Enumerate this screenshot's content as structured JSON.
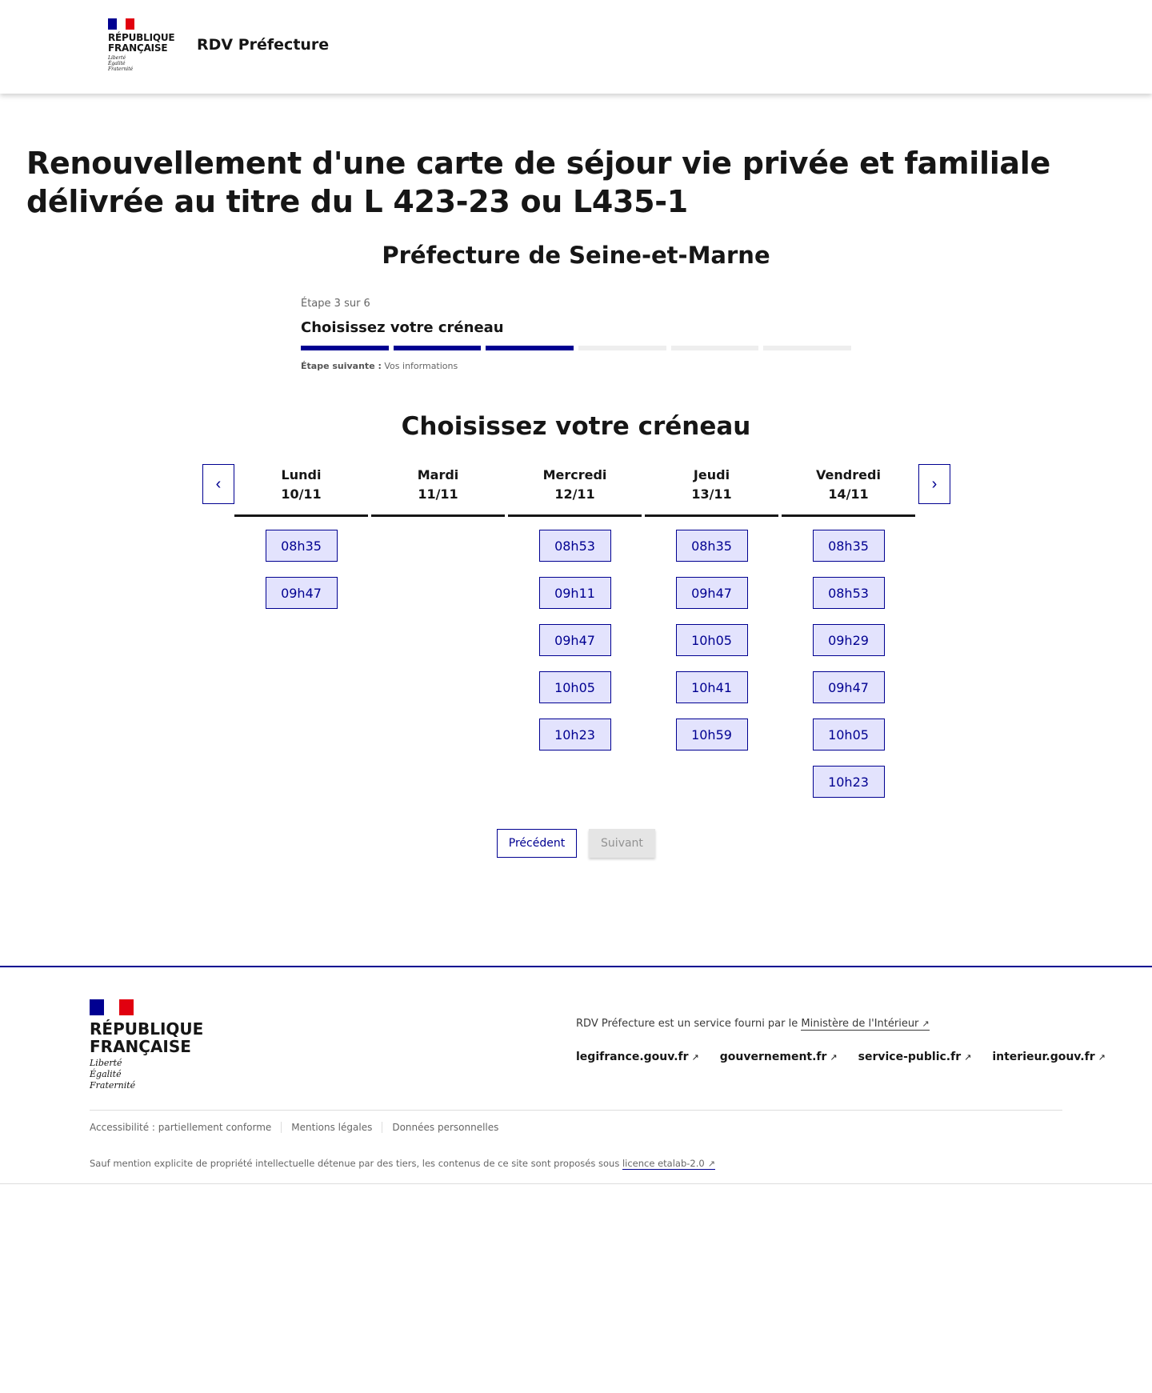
{
  "header": {
    "logo_line1": "RÉPUBLIQUE",
    "logo_line2": "FRANÇAISE",
    "motto": [
      "Liberté",
      "Égalité",
      "Fraternité"
    ],
    "site_title": "RDV Préfecture"
  },
  "page": {
    "title": "Renouvellement d'une carte de séjour vie privée et familiale délivrée au titre du L 423-23 ou L435-1",
    "subtitle": "Préfecture de Seine-et-Marne"
  },
  "stepper": {
    "step_label": "Étape 3 sur 6",
    "current_title": "Choisissez votre créneau",
    "current_step": 3,
    "total_steps": 6,
    "next_label": "Étape suivante :",
    "next_value": "Vos informations",
    "active_color": "#000091"
  },
  "calendar": {
    "heading": "Choisissez votre créneau",
    "prev_icon": "chevron-left-icon",
    "next_icon": "chevron-right-icon",
    "days": [
      {
        "day": "Lundi",
        "date": "10/11",
        "slots": [
          "08h35",
          "09h47"
        ]
      },
      {
        "day": "Mardi",
        "date": "11/11",
        "slots": []
      },
      {
        "day": "Mercredi",
        "date": "12/11",
        "slots": [
          "08h53",
          "09h11",
          "09h47",
          "10h05",
          "10h23"
        ]
      },
      {
        "day": "Jeudi",
        "date": "13/11",
        "slots": [
          "08h35",
          "09h47",
          "10h05",
          "10h41",
          "10h59"
        ]
      },
      {
        "day": "Vendredi",
        "date": "14/11",
        "slots": [
          "08h35",
          "08h53",
          "09h29",
          "09h47",
          "10h05",
          "10h23"
        ]
      }
    ]
  },
  "actions": {
    "previous": "Précédent",
    "next": "Suivant"
  },
  "footer": {
    "logo_line1": "RÉPUBLIQUE",
    "logo_line2": "FRANÇAISE",
    "motto": [
      "Liberté",
      "Égalité",
      "Fraternité"
    ],
    "description": "RDV Préfecture est un service fourni par le",
    "ministry_link": "Ministère de l'Intérieur",
    "links": [
      "legifrance.gouv.fr",
      "gouvernement.fr",
      "service-public.fr",
      "interieur.gouv.fr"
    ],
    "bottom_links": [
      "Accessibilité : partiellement conforme",
      "Mentions légales",
      "Données personnelles"
    ],
    "license_text": "Sauf mention explicite de propriété intellectuelle détenue par des tiers, les contenus de ce site sont proposés sous",
    "license_link": "licence etalab-2.0"
  }
}
